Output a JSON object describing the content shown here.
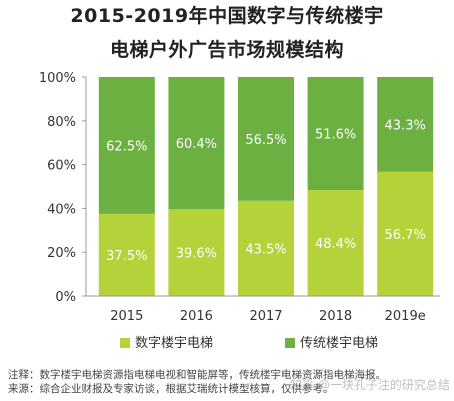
{
  "title_line1": "2015-2019年中国数字与传统楼宇",
  "title_line2": "电梯户外广告市场规模结构",
  "chart_data": {
    "type": "bar",
    "stacked": true,
    "percent": true,
    "categories": [
      "2015",
      "2016",
      "2017",
      "2018",
      "2019e"
    ],
    "series": [
      {
        "name": "数字楼宇电梯",
        "values": [
          37.5,
          39.6,
          43.5,
          48.4,
          56.7
        ],
        "color": "#b5d23a"
      },
      {
        "name": "传统楼宇电梯",
        "values": [
          62.5,
          60.4,
          56.5,
          51.6,
          43.3
        ],
        "color": "#6cb042"
      }
    ],
    "data_labels": {
      "数字楼宇电梯": [
        "37.5%",
        "39.6%",
        "43.5%",
        "48.4%",
        "56.7%"
      ],
      "传统楼宇电梯": [
        "62.5%",
        "60.4%",
        "56.5%",
        "51.6%",
        "43.3%"
      ]
    },
    "yticks": [
      "0%",
      "20%",
      "40%",
      "60%",
      "80%",
      "100%"
    ],
    "ylim": [
      0,
      100
    ],
    "legend_position": "bottom",
    "grid": false
  },
  "notes": {
    "line1": "注释：数字楼宇电梯资源指电梯电视和智能屏等，传统楼宇电梯资源指电梯海报。",
    "line2": "来源：综合企业财报及专家访谈，根据艾瑞统计模型核算，仅供参考。"
  },
  "watermark": "知乎 @一块孔子注的研究总结"
}
